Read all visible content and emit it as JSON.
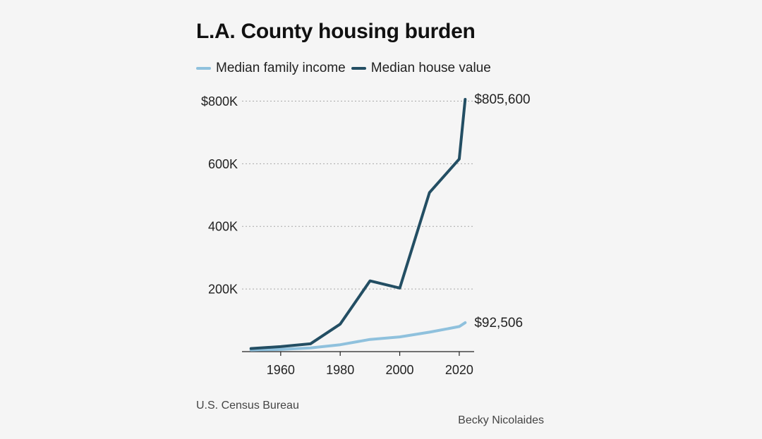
{
  "header": {
    "title": "L.A. County housing burden"
  },
  "footer": {
    "source": "U.S. Census Bureau",
    "credit": "Becky Nicolaides"
  },
  "chart_data": {
    "type": "line",
    "title": "L.A. County housing burden",
    "xlabel": "",
    "ylabel": "",
    "x_ticks": [
      "1960",
      "1980",
      "2000",
      "2020"
    ],
    "x_tick_values": [
      1960,
      1980,
      2000,
      2020
    ],
    "y_ticks": [
      "",
      "200K",
      "400K",
      "600K",
      "$800K"
    ],
    "y_tick_values": [
      0,
      200000,
      400000,
      600000,
      800000
    ],
    "xlim": [
      1947,
      2025
    ],
    "ylim": [
      0,
      805600
    ],
    "grid": "horizontal dotted",
    "legend_position": "top",
    "series": [
      {
        "name": "Median family income",
        "color": "#8fc1dd",
        "end_label": "$92,506",
        "x": [
          1950,
          1960,
          1970,
          1980,
          1990,
          2000,
          2010,
          2020,
          2022
        ],
        "y": [
          5200,
          7000,
          12000,
          22000,
          39000,
          47000,
          62000,
          80000,
          92506
        ]
      },
      {
        "name": "Median house value",
        "color": "#234e63",
        "end_label": "$805,600",
        "x": [
          1950,
          1960,
          1970,
          1980,
          1990,
          2000,
          2010,
          2020,
          2022
        ],
        "y": [
          10000,
          16000,
          25000,
          88000,
          226000,
          203000,
          508000,
          615000,
          805600
        ]
      }
    ]
  }
}
